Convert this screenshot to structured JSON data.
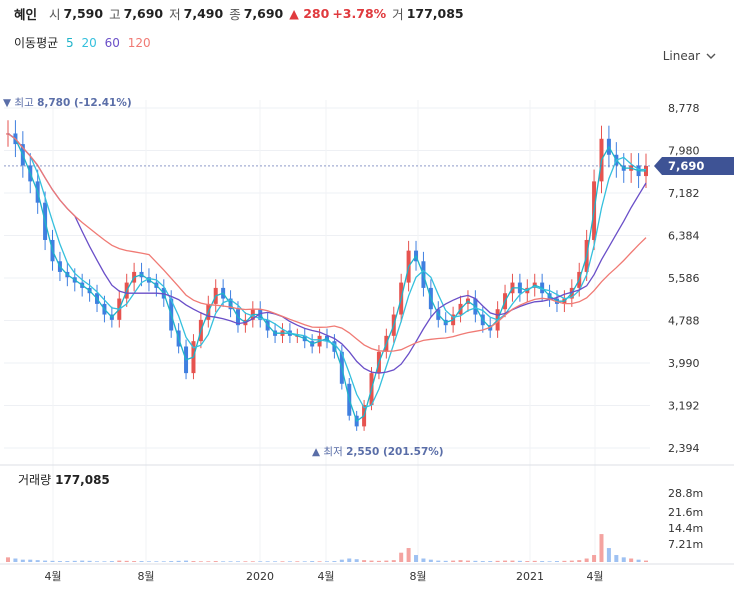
{
  "header": {
    "name": "혜인",
    "open_label": "시",
    "open": "7,590",
    "high_label": "고",
    "high": "7,690",
    "low_label": "저",
    "low": "7,490",
    "close_label": "종",
    "close": "7,690",
    "change": "▲ 280",
    "change_pct": "+3.78%",
    "volume_label": "거",
    "volume": "177,085"
  },
  "ma_legend": {
    "title": "이동평균",
    "items": [
      {
        "label": "5",
        "color": "#1fb3c9"
      },
      {
        "label": "20",
        "color": "#35c0dd"
      },
      {
        "label": "60",
        "color": "#6a4fc8"
      },
      {
        "label": "120",
        "color": "#f07a74"
      }
    ]
  },
  "scale_selector": {
    "label": "Linear"
  },
  "chart_data": {
    "type": "candlestick",
    "price_ticks": [
      "8,778",
      "7,980",
      "7,182",
      "6,384",
      "5,586",
      "4,788",
      "3,990",
      "3,192",
      "2,394"
    ],
    "price_range": [
      2394,
      8778
    ],
    "volume_ticks": [
      "28.8m",
      "21.6m",
      "14.4m",
      "7.21m"
    ],
    "x_ticks": [
      "4월",
      "8월",
      "2020",
      "4월",
      "8월",
      "2021",
      "4월"
    ],
    "current_price": {
      "label": "7,690",
      "value": 7690
    },
    "max_marker": {
      "prefix": "▼ 최고",
      "value_text": "8,780 (-12.41%)",
      "value": 8780
    },
    "min_marker": {
      "prefix": "▲ 최저",
      "value_text": "2,550 (201.57%)",
      "value": 2550
    },
    "volume_label": {
      "title": "거래량",
      "value": "177,085"
    },
    "close_series_approx": [
      8300,
      8100,
      7700,
      7400,
      7000,
      6300,
      5900,
      5700,
      5600,
      5500,
      5400,
      5300,
      5100,
      4900,
      4800,
      5200,
      5500,
      5700,
      5600,
      5500,
      5400,
      5200,
      4600,
      4300,
      3800,
      4400,
      4800,
      5100,
      5400,
      5200,
      5000,
      4700,
      4800,
      5000,
      4800,
      4600,
      4500,
      4600,
      4500,
      4500,
      4400,
      4300,
      4500,
      4400,
      4200,
      3600,
      3000,
      2800,
      3200,
      3800,
      4200,
      4500,
      4900,
      5500,
      6100,
      5900,
      5400,
      5000,
      4800,
      4700,
      4900,
      5100,
      5200,
      4900,
      4700,
      4600,
      5000,
      5300,
      5500,
      5300,
      5400,
      5500,
      5300,
      5200,
      5100,
      5200,
      5400,
      5700,
      6300,
      7400,
      8200,
      7900,
      7700,
      7600,
      7700,
      7500,
      7690
    ],
    "volume_series_approx": [
      2,
      1.5,
      1,
      1,
      0.8,
      0.6,
      0.5,
      0.4,
      0.4,
      0.5,
      0.6,
      0.5,
      0.3,
      0.3,
      0.4,
      0.6,
      0.5,
      0.4,
      0.4,
      0.3,
      0.3,
      0.3,
      0.4,
      0.5,
      0.6,
      0.4,
      0.3,
      0.3,
      0.4,
      0.3,
      0.3,
      0.3,
      0.3,
      0.3,
      0.3,
      0.3,
      0.3,
      0.3,
      0.3,
      0.3,
      0.3,
      0.4,
      0.3,
      0.3,
      0.4,
      1,
      1.5,
      1.2,
      0.8,
      0.6,
      0.5,
      0.6,
      0.8,
      4,
      6,
      3,
      1.5,
      1,
      0.6,
      0.5,
      0.6,
      0.8,
      0.6,
      0.5,
      0.4,
      0.4,
      0.5,
      0.6,
      0.6,
      0.5,
      0.4,
      0.5,
      0.4,
      0.3,
      0.4,
      0.5,
      0.6,
      0.8,
      1.5,
      3,
      12,
      6,
      3,
      2,
      1.5,
      1,
      0.6
    ],
    "volume_max": 28.8,
    "grid": true,
    "legend": "top-left"
  }
}
